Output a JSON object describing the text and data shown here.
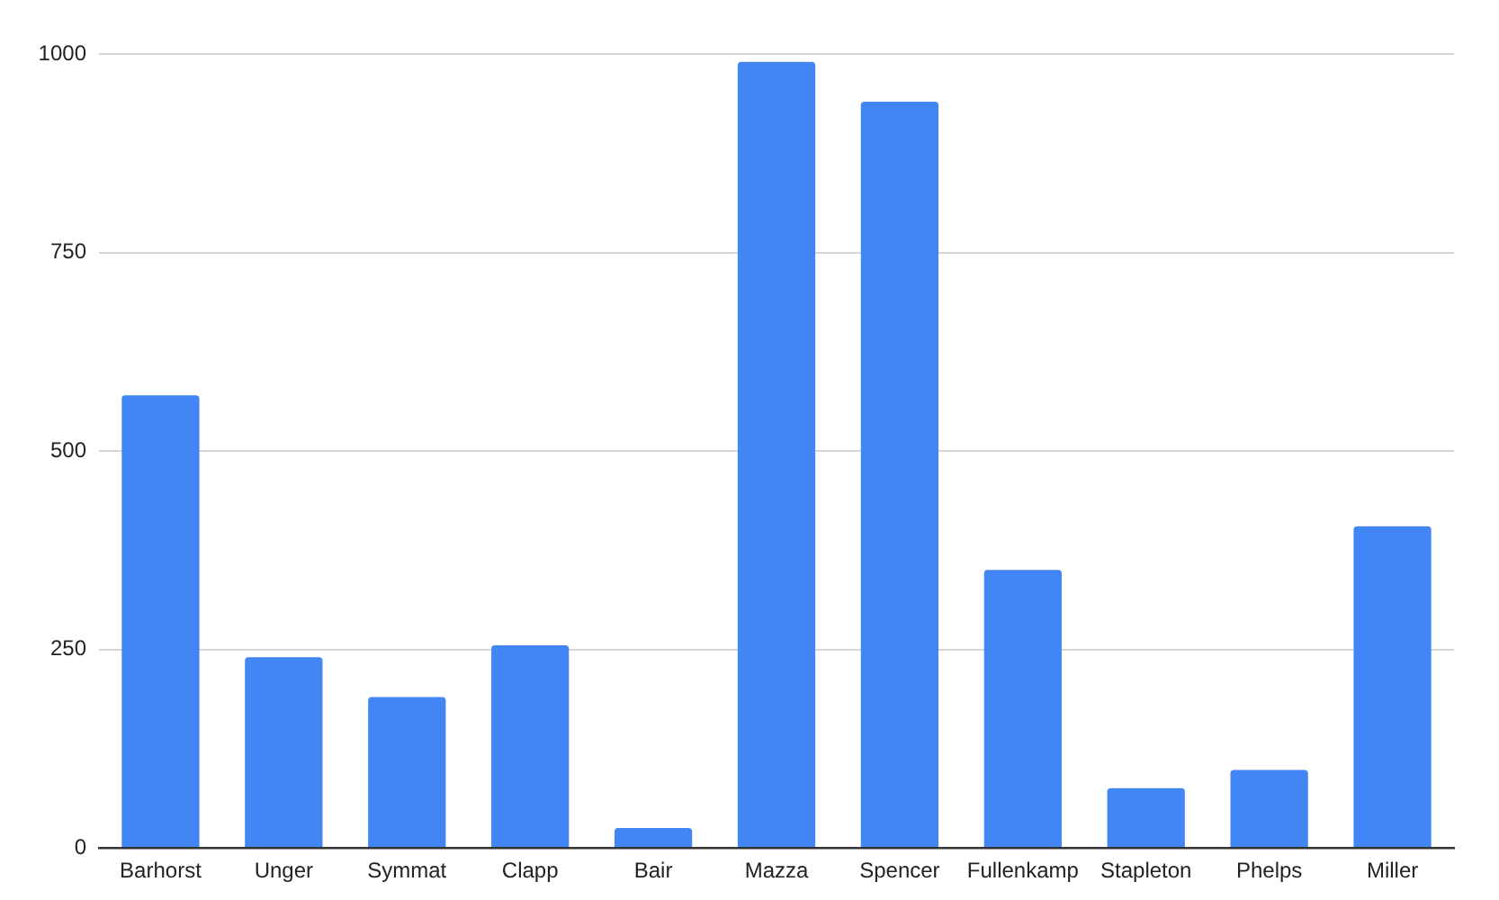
{
  "chart_data": {
    "type": "bar",
    "categories": [
      "Barhorst",
      "Unger",
      "Symmat",
      "Clapp",
      "Bair",
      "Mazza",
      "Spencer",
      "Fullenkamp",
      "Stapleton",
      "Phelps",
      "Miller"
    ],
    "values": [
      570,
      240,
      190,
      255,
      25,
      990,
      940,
      350,
      75,
      98,
      405
    ],
    "color": "#4285f4",
    "ylim": [
      0,
      1000
    ],
    "yticks": [
      0,
      250,
      500,
      750,
      1000
    ],
    "grid": "y"
  }
}
